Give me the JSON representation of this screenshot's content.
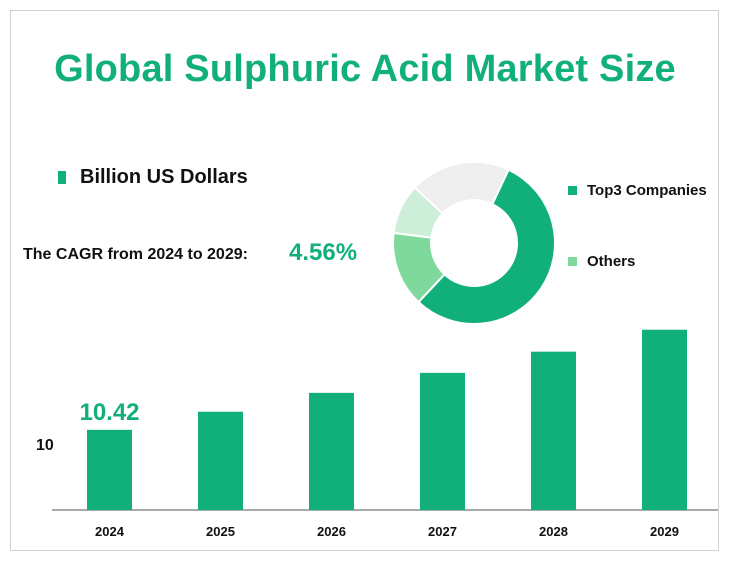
{
  "title": "Global Sulphuric Acid Market Size",
  "unit_legend": "Billion US Dollars",
  "cagr": {
    "label": "The CAGR from 2024 to 2029:",
    "value": "4.56%"
  },
  "colors": {
    "accent": "#11b07a",
    "light_green": "#7fd89c",
    "pale_green": "#cdeed9",
    "gray": "#eeeeee"
  },
  "chart_data": [
    {
      "type": "bar",
      "categories": [
        "2024",
        "2025",
        "2026",
        "2027",
        "2028",
        "2029"
      ],
      "values": [
        10.42,
        10.89,
        11.38,
        11.9,
        12.45,
        13.02
      ],
      "data_labels": [
        {
          "category": "2024",
          "text": "10.42"
        }
      ],
      "yticks": [
        "10"
      ],
      "grid": false
    },
    {
      "type": "pie",
      "style": "donut",
      "labels": [
        "Top3 Companies",
        "Others"
      ],
      "slices": [
        {
          "label": "Top3 Companies",
          "value": 55,
          "color": "#11b07a"
        },
        {
          "label": "Others",
          "value": 15,
          "color": "#7fd89c"
        },
        {
          "label": "",
          "value": 10,
          "color": "#cdeed9"
        },
        {
          "label": "",
          "value": 20,
          "color": "#eeeeee"
        }
      ]
    }
  ]
}
